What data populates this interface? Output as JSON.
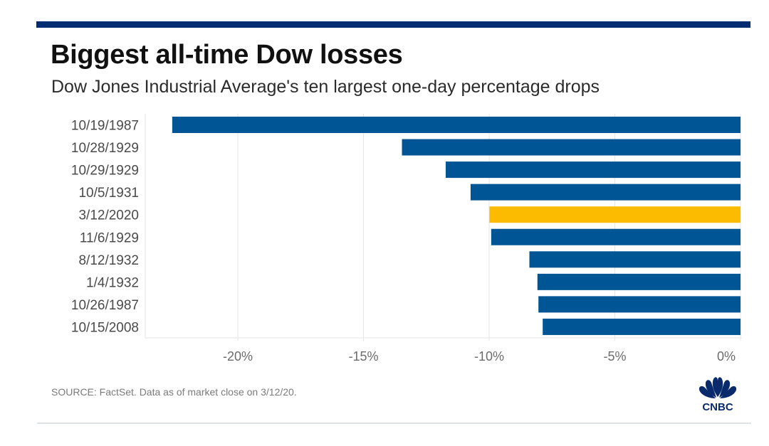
{
  "header": {
    "title": "Biggest all-time Dow losses",
    "subtitle": "Dow Jones Industrial Average's ten largest one-day percentage drops"
  },
  "footer": {
    "source": "SOURCE: FactSet. Data as of market close on 3/12/20.",
    "logo_label": "CNBC"
  },
  "colors": {
    "brand_navy": "#002d72",
    "bar": "#005594",
    "highlight": "#fdbb00",
    "grid": "#e6e6e6",
    "tick_text": "#6b6b6b"
  },
  "chart_data": {
    "type": "bar",
    "orientation": "horizontal",
    "title": "Biggest all-time Dow losses",
    "subtitle": "Dow Jones Industrial Average's ten largest one-day percentage drops",
    "xlabel": "",
    "ylabel": "",
    "categories": [
      "10/19/1987",
      "10/28/1929",
      "10/29/1929",
      "10/5/1931",
      "3/12/2020",
      "11/6/1929",
      "8/12/1932",
      "1/4/1932",
      "10/26/1987",
      "10/15/2008"
    ],
    "values": [
      -22.61,
      -13.47,
      -11.73,
      -10.74,
      -9.99,
      -9.92,
      -8.4,
      -8.08,
      -8.04,
      -7.87
    ],
    "highlight_category": "3/12/2020",
    "unit": "%",
    "xlim": [
      -23.5,
      0
    ],
    "xticks": [
      -20,
      -15,
      -10,
      -5,
      0
    ],
    "xtick_labels": [
      "-20%",
      "-15%",
      "-10%",
      "-5%",
      "0%"
    ],
    "grid": true,
    "legend": "none"
  }
}
